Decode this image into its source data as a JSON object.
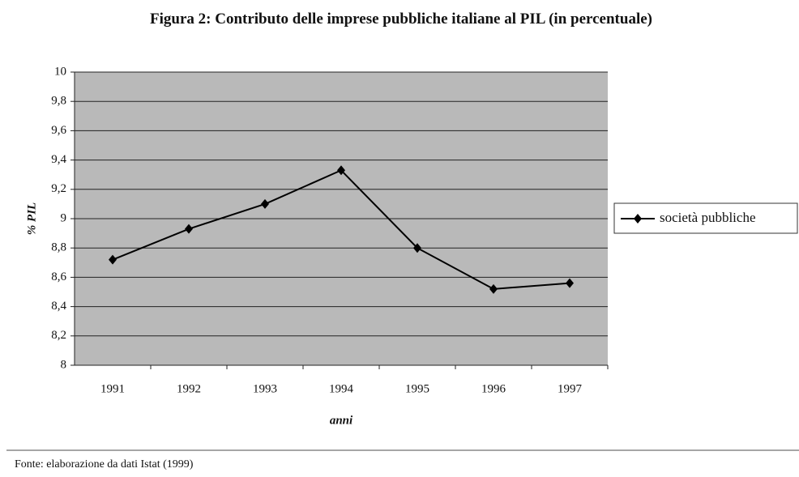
{
  "chart_data": {
    "type": "line",
    "title": "Figura 2: Contributo delle imprese pubbliche italiane al PIL (in percentuale)",
    "x_label": "anni",
    "y_label": "% PIL",
    "categories": [
      "1991",
      "1992",
      "1993",
      "1994",
      "1995",
      "1996",
      "1997"
    ],
    "series": [
      {
        "name": "società pubbliche",
        "color": "#000000",
        "values": [
          8.72,
          8.93,
          9.1,
          9.33,
          8.8,
          8.52,
          8.56
        ]
      }
    ],
    "ylim": [
      8,
      10
    ],
    "yticks": [
      8,
      {
        "value": 8.2,
        "label": "8,2"
      },
      {
        "value": 8.4,
        "label": "8,4"
      },
      {
        "value": 8.6,
        "label": "8,6"
      },
      {
        "value": 8.8,
        "label": "8,8"
      },
      9,
      {
        "value": 9.2,
        "label": "9,2"
      },
      {
        "value": 9.4,
        "label": "9,4"
      },
      {
        "value": 9.6,
        "label": "9,6"
      },
      {
        "value": 9.8,
        "label": "9,8"
      },
      10
    ],
    "grid": true,
    "legend": "right",
    "source": "Fonte: elaborazione da dati Istat (1999)"
  }
}
